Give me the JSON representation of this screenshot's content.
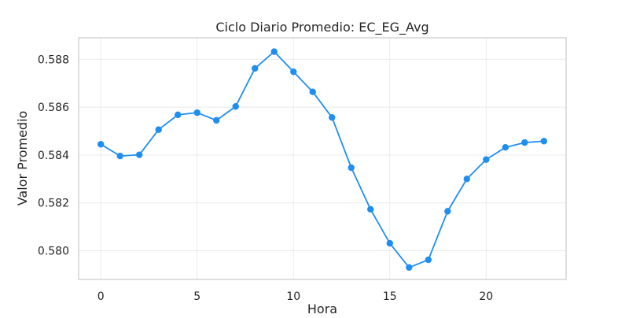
{
  "chart_data": {
    "type": "line",
    "title": "Ciclo Diario Promedio: EC_EG_Avg",
    "xlabel": "Hora",
    "ylabel": "Valor Promedio",
    "xlim": [
      -1.15,
      24.15
    ],
    "ylim": [
      0.5788,
      0.5889
    ],
    "x_ticks": [
      0,
      5,
      10,
      15,
      20
    ],
    "y_ticks": [
      0.58,
      0.582,
      0.584,
      0.586,
      0.588
    ],
    "x_tick_labels": [
      "0",
      "5",
      "10",
      "15",
      "20"
    ],
    "y_tick_labels": [
      "0.580",
      "0.582",
      "0.584",
      "0.586",
      "0.588"
    ],
    "grid": true,
    "legend": "none",
    "series": [
      {
        "color": "#1f8ef1",
        "x": [
          0,
          1,
          2,
          3,
          4,
          5,
          6,
          7,
          8,
          9,
          10,
          11,
          12,
          13,
          14,
          15,
          16,
          17,
          18,
          19,
          20,
          21,
          22,
          23
        ],
        "y": [
          0.58445,
          0.58396,
          0.58401,
          0.58506,
          0.58568,
          0.58577,
          0.58545,
          0.58603,
          0.58762,
          0.58832,
          0.58748,
          0.58664,
          0.58557,
          0.58347,
          0.58173,
          0.58031,
          0.5793,
          0.57962,
          0.58165,
          0.583,
          0.58381,
          0.58432,
          0.58452,
          0.58458
        ]
      }
    ]
  }
}
